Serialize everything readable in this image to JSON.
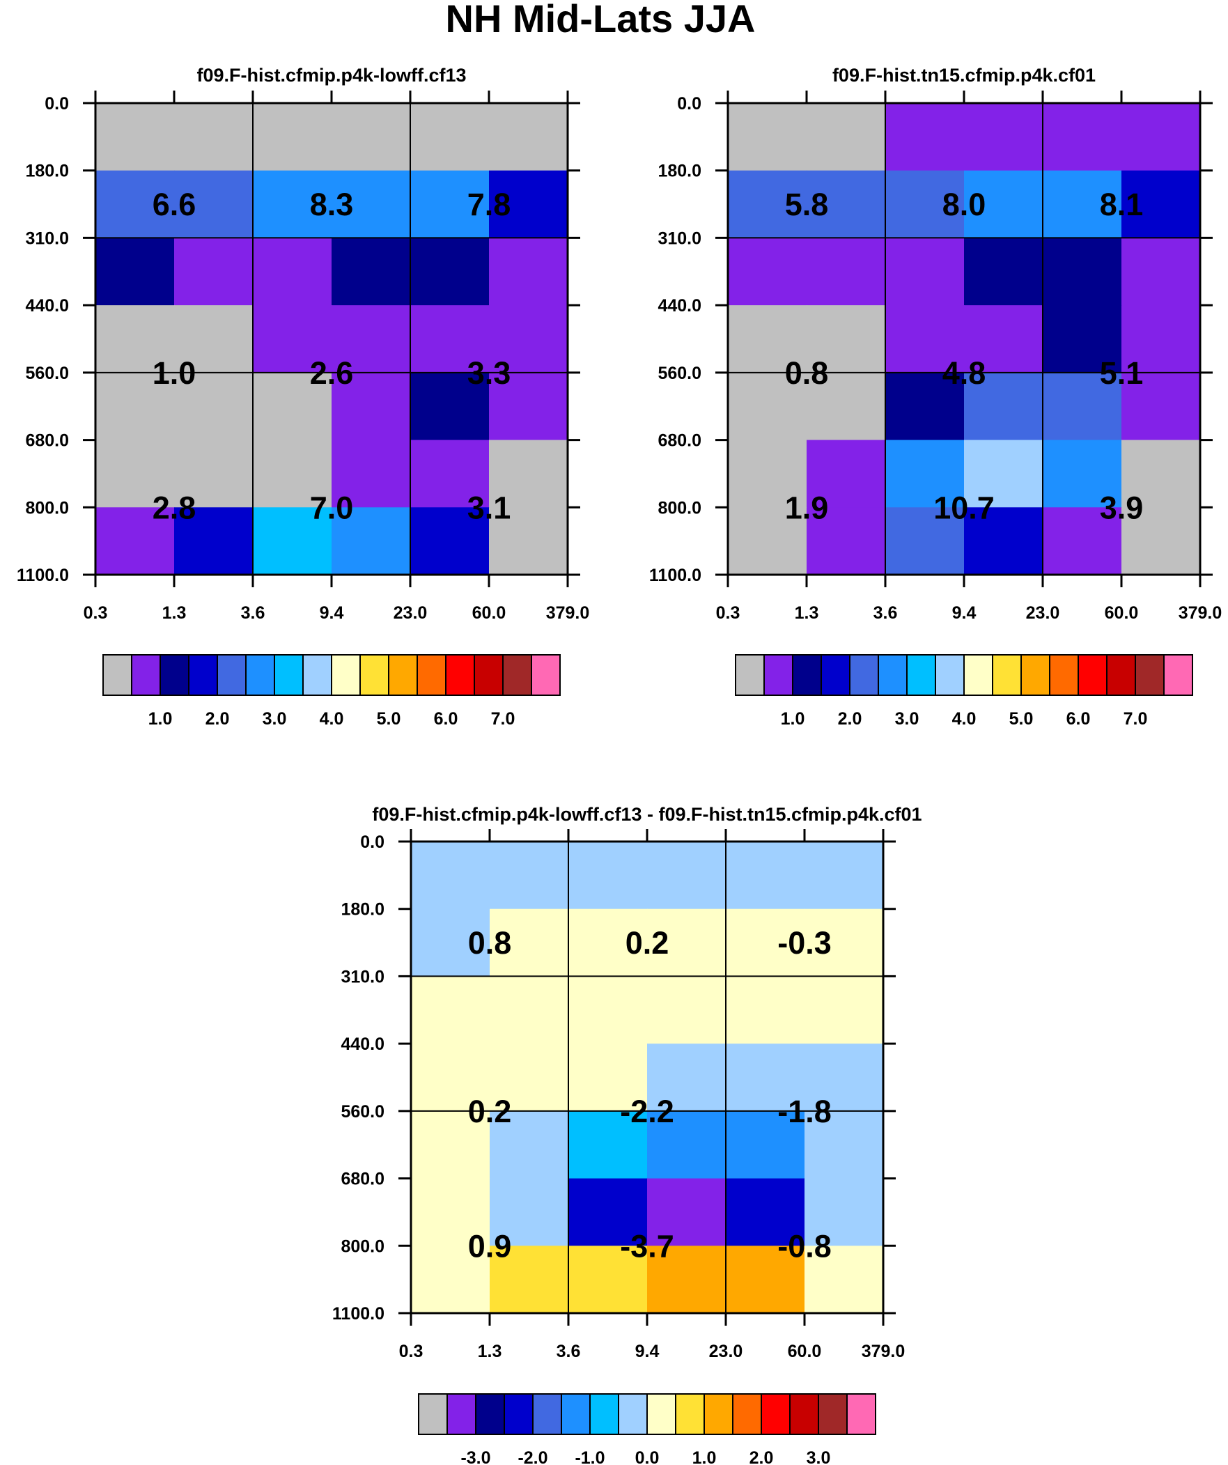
{
  "title": "NH Mid-Lats JJA",
  "palette": {
    "0": "#c0c0c0",
    "1": "#8322e8",
    "2": "#00008c",
    "3": "#0000cc",
    "4": "#4169e1",
    "5": "#1e90ff",
    "6": "#00bfff",
    "7": "#a0d0ff",
    "8": "#ffffc8",
    "9": "#ffe135",
    "10": "#ffa800",
    "11": "#ff6a00",
    "12": "#ff0000",
    "13": "#c80000",
    "14": "#a02828",
    "15": "#ff69b4"
  },
  "chart_data": [
    {
      "type": "heatmap",
      "title": "f09.F-hist.cfmip.p4k-lowff.cf13",
      "x_ticks": [
        "0.3",
        "1.3",
        "3.6",
        "9.4",
        "23.0",
        "60.0",
        "379.0"
      ],
      "y_ticks": [
        "0.0",
        "180.0",
        "310.0",
        "440.0",
        "560.0",
        "680.0",
        "800.0",
        "1100.0"
      ],
      "cells": [
        [
          0,
          0,
          0,
          0,
          0,
          0
        ],
        [
          4,
          4,
          5,
          5,
          5,
          3
        ],
        [
          2,
          1,
          1,
          2,
          2,
          1
        ],
        [
          0,
          0,
          1,
          1,
          1,
          1
        ],
        [
          0,
          0,
          0,
          1,
          2,
          1
        ],
        [
          0,
          0,
          0,
          1,
          1,
          0
        ],
        [
          1,
          3,
          6,
          5,
          3,
          0
        ]
      ],
      "box_values": [
        [
          "6.6",
          "8.3",
          "7.8"
        ],
        [
          "1.0",
          "2.6",
          "3.3"
        ],
        [
          "2.8",
          "7.0",
          "3.1"
        ]
      ],
      "colorbar_labels": [
        "1.0",
        "2.0",
        "3.0",
        "4.0",
        "5.0",
        "6.0",
        "7.0"
      ]
    },
    {
      "type": "heatmap",
      "title": "f09.F-hist.tn15.cfmip.p4k.cf01",
      "x_ticks": [
        "0.3",
        "1.3",
        "3.6",
        "9.4",
        "23.0",
        "60.0",
        "379.0"
      ],
      "y_ticks": [
        "0.0",
        "180.0",
        "310.0",
        "440.0",
        "560.0",
        "680.0",
        "800.0",
        "1100.0"
      ],
      "cells": [
        [
          0,
          0,
          1,
          1,
          1,
          1
        ],
        [
          4,
          4,
          4,
          5,
          5,
          3
        ],
        [
          1,
          1,
          1,
          2,
          2,
          1
        ],
        [
          0,
          0,
          1,
          1,
          2,
          1
        ],
        [
          0,
          0,
          2,
          4,
          4,
          1
        ],
        [
          0,
          1,
          5,
          7,
          5,
          0
        ],
        [
          0,
          1,
          4,
          3,
          1,
          0
        ]
      ],
      "box_values": [
        [
          "5.8",
          "8.0",
          "8.1"
        ],
        [
          "0.8",
          "4.8",
          "5.1"
        ],
        [
          "1.9",
          "10.7",
          "3.9"
        ]
      ],
      "colorbar_labels": [
        "1.0",
        "2.0",
        "3.0",
        "4.0",
        "5.0",
        "6.0",
        "7.0"
      ]
    },
    {
      "type": "heatmap",
      "title": "f09.F-hist.cfmip.p4k-lowff.cf13 - f09.F-hist.tn15.cfmip.p4k.cf01",
      "x_ticks": [
        "0.3",
        "1.3",
        "3.6",
        "9.4",
        "23.0",
        "60.0",
        "379.0"
      ],
      "y_ticks": [
        "0.0",
        "180.0",
        "310.0",
        "440.0",
        "560.0",
        "680.0",
        "800.0",
        "1100.0"
      ],
      "cells": [
        [
          7,
          7,
          7,
          7,
          7,
          7
        ],
        [
          7,
          8,
          8,
          8,
          8,
          8
        ],
        [
          8,
          8,
          8,
          8,
          8,
          8
        ],
        [
          8,
          8,
          8,
          7,
          7,
          7
        ],
        [
          8,
          7,
          6,
          5,
          5,
          7
        ],
        [
          8,
          7,
          3,
          1,
          3,
          7
        ],
        [
          8,
          9,
          9,
          10,
          10,
          8
        ]
      ],
      "box_values": [
        [
          "0.8",
          "0.2",
          "-0.3"
        ],
        [
          "0.2",
          "-2.2",
          "-1.8"
        ],
        [
          "0.9",
          "-3.7",
          "-0.8"
        ]
      ],
      "colorbar_labels": [
        "-3.0",
        "-2.0",
        "-1.0",
        "0.0",
        "1.0",
        "2.0",
        "3.0"
      ]
    }
  ]
}
